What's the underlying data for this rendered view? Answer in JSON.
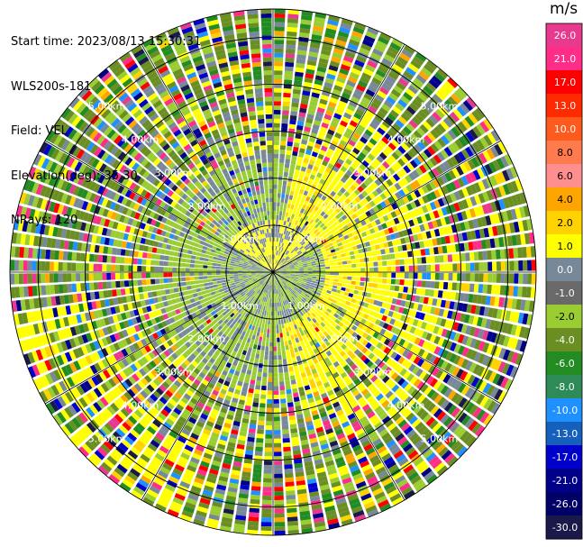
{
  "info": {
    "start_time": "Start time: 2023/08/13 15:30:31",
    "instrument": "WLS200s-181",
    "field": "Field: VEL",
    "elevation": "Elevation(deg): 35.30",
    "nrays": "NRays: 120"
  },
  "colorbar": {
    "unit": "m/s",
    "ticks": [
      "26.0",
      "21.0",
      "17.0",
      "13.0",
      "10.0",
      "8.0",
      "6.0",
      "4.0",
      "2.0",
      "1.0",
      "0.0",
      "-1.0",
      "-2.0",
      "-4.0",
      "-6.0",
      "-8.0",
      "-10.0",
      "-13.0",
      "-17.0",
      "-21.0",
      "-26.0",
      "-30.0"
    ],
    "colors": [
      "#e8398f",
      "#ff2d88",
      "#ff0000",
      "#ff2a00",
      "#ff5a1e",
      "#ff7a4c",
      "#ff8f8f",
      "#ffa500",
      "#ffd200",
      "#ffff00",
      "#778899",
      "#696969",
      "#9acd32",
      "#6b8e23",
      "#228b22",
      "#2e8b57",
      "#1e90ff",
      "#1560bd",
      "#0000cd",
      "#00008b",
      "#000066",
      "#1a1a4a"
    ]
  },
  "chart_data": {
    "type": "heatmap",
    "projection": "polar PPI",
    "field": "VEL",
    "unit": "m/s",
    "nrays": 120,
    "range_rings_km": [
      1.0,
      2.0,
      3.0,
      4.0,
      5.0
    ],
    "ring_labels": [
      "1.00km",
      "2.00km",
      "3.00km",
      "4.00km",
      "5.00km"
    ],
    "color_levels": [
      -30.0,
      -26.0,
      -21.0,
      -17.0,
      -13.0,
      -10.0,
      -8.0,
      -6.0,
      -4.0,
      -2.0,
      -1.0,
      0.0,
      1.0,
      2.0,
      4.0,
      6.0,
      8.0,
      10.0,
      13.0,
      17.0,
      21.0,
      26.0
    ],
    "grid": true
  }
}
